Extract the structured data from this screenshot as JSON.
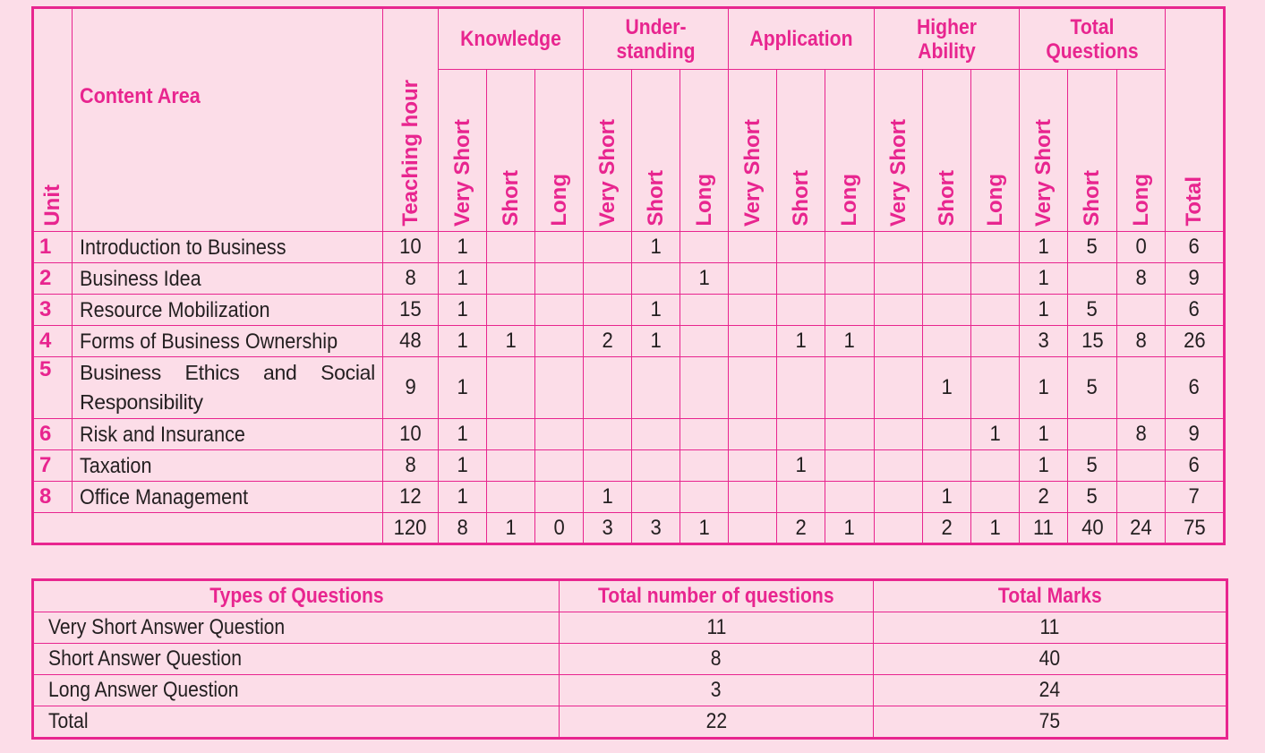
{
  "specification_table": {
    "headers": {
      "unit": "Unit",
      "content_area": "Content Area",
      "teaching_hour": "Teaching hour",
      "groups": [
        "Knowledge",
        "Under-\nstanding",
        "Application",
        "Higher\nAbility",
        "Total\nQuestions"
      ],
      "group_lines": [
        [
          "Knowledge"
        ],
        [
          "Under-",
          "standing"
        ],
        [
          "Application"
        ],
        [
          "Higher",
          "Ability"
        ],
        [
          "Total",
          "Questions"
        ]
      ],
      "sub_columns": [
        "Very Short",
        "Short",
        "Long"
      ],
      "total": "Total"
    },
    "rows": [
      {
        "unit": "1",
        "content": "Introduction to Business",
        "hours": "10",
        "cells": [
          "1",
          "",
          "",
          "",
          "1",
          "",
          "",
          "",
          "",
          "",
          "",
          "",
          "1",
          "5",
          "0",
          "6"
        ]
      },
      {
        "unit": "2",
        "content": "Business Idea",
        "hours": "8",
        "cells": [
          "1",
          "",
          "",
          "",
          "",
          "1",
          "",
          "",
          "",
          "",
          "",
          "",
          "1",
          "",
          "8",
          "9"
        ]
      },
      {
        "unit": "3",
        "content": "Resource Mobilization",
        "hours": "15",
        "cells": [
          "1",
          "",
          "",
          "",
          "1",
          "",
          "",
          "",
          "",
          "",
          "",
          "",
          "1",
          "5",
          "",
          "6"
        ]
      },
      {
        "unit": "4",
        "content": "Forms of Business Ownership",
        "hours": "48",
        "cells": [
          "1",
          "1",
          "",
          "2",
          "1",
          "",
          "",
          "1",
          "1",
          "",
          "",
          "",
          "3",
          "15",
          "8",
          "26"
        ]
      },
      {
        "unit": "5",
        "content": "Business Ethics and Social Responsibility",
        "hours": "9",
        "cells": [
          "1",
          "",
          "",
          "",
          "",
          "",
          "",
          "",
          "",
          "",
          "1",
          "",
          "1",
          "5",
          "",
          "6"
        ]
      },
      {
        "unit": "6",
        "content": "Risk and Insurance",
        "hours": "10",
        "cells": [
          "1",
          "",
          "",
          "",
          "",
          "",
          "",
          "",
          "",
          "",
          "",
          "1",
          "1",
          "",
          "8",
          "9"
        ]
      },
      {
        "unit": "7",
        "content": "Taxation",
        "hours": "8",
        "cells": [
          "1",
          "",
          "",
          "",
          "",
          "",
          "",
          "1",
          "",
          "",
          "",
          "",
          "1",
          "5",
          "",
          "6"
        ]
      },
      {
        "unit": "8",
        "content": "Office Management",
        "hours": "12",
        "cells": [
          "1",
          "",
          "",
          "1",
          "",
          "",
          "",
          "",
          "",
          "",
          "1",
          "",
          "2",
          "5",
          "",
          "7"
        ]
      }
    ],
    "totals_row": {
      "hours": "120",
      "cells": [
        "8",
        "1",
        "0",
        "3",
        "3",
        "1",
        "",
        "2",
        "1",
        "",
        "2",
        "1",
        "11",
        "40",
        "24",
        "75"
      ]
    }
  },
  "summary_table": {
    "headers": [
      "Types of Questions",
      "Total number of questions",
      "Total Marks"
    ],
    "rows": [
      {
        "type": "Very Short Answer Question",
        "count": "11",
        "marks": "11"
      },
      {
        "type": "Short Answer Question",
        "count": "8",
        "marks": "40"
      },
      {
        "type": "Long Answer Question",
        "count": "3",
        "marks": "24"
      },
      {
        "type": "Total",
        "count": "22",
        "marks": "75"
      }
    ]
  },
  "colors": {
    "border": "#e8258f",
    "header_text": "#e8258f",
    "background": "#fcdde8",
    "body_text": "#231f20"
  }
}
